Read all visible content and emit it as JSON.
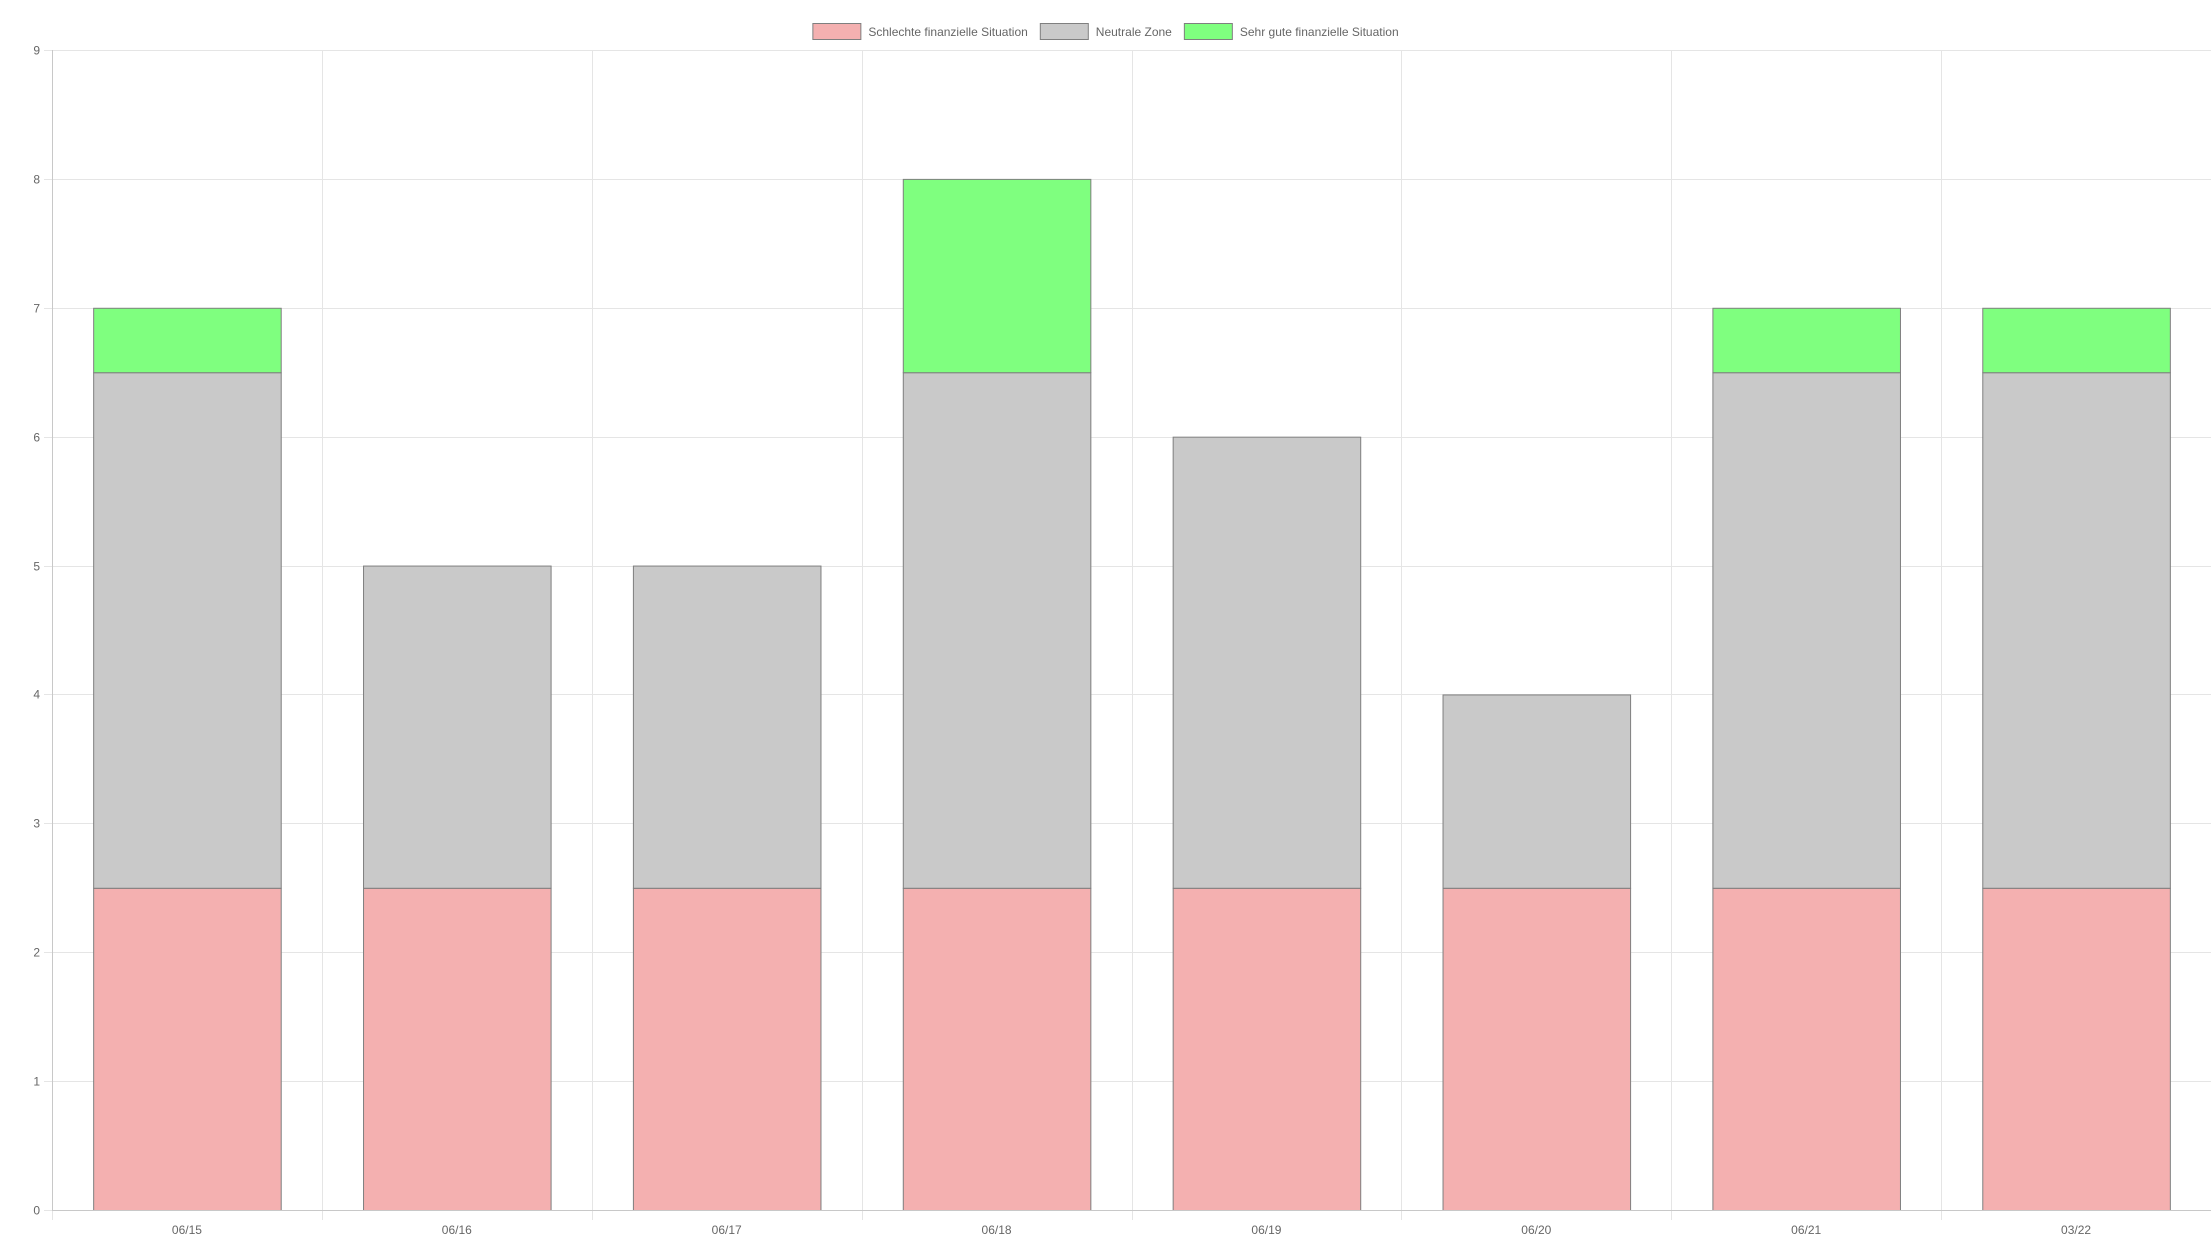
{
  "chart_data": {
    "type": "bar",
    "stacked": true,
    "title": "",
    "xlabel": "",
    "ylabel": "",
    "categories": [
      "06/15",
      "06/16",
      "06/17",
      "06/18",
      "06/19",
      "06/20",
      "06/21",
      "03/22"
    ],
    "ylim": [
      0,
      9
    ],
    "yticks": [
      0,
      1,
      2,
      3,
      4,
      5,
      6,
      7,
      8,
      9
    ],
    "grid": true,
    "legend_position": "top-center",
    "series": [
      {
        "name": "Schlechte finanzielle Situation",
        "color": "#f4b0b0",
        "values": [
          2.5,
          2.5,
          2.5,
          2.5,
          2.5,
          2.5,
          2.5,
          2.5
        ]
      },
      {
        "name": "Neutrale Zone",
        "color": "#c9c9c9",
        "values": [
          4,
          2.5,
          2.5,
          4,
          3.5,
          1.5,
          4,
          4
        ]
      },
      {
        "name": "Sehr gute finanzielle Situation",
        "color": "#7fff7f",
        "values": [
          0.5,
          0,
          0,
          1.5,
          0,
          0,
          0.5,
          0.5
        ]
      }
    ]
  }
}
